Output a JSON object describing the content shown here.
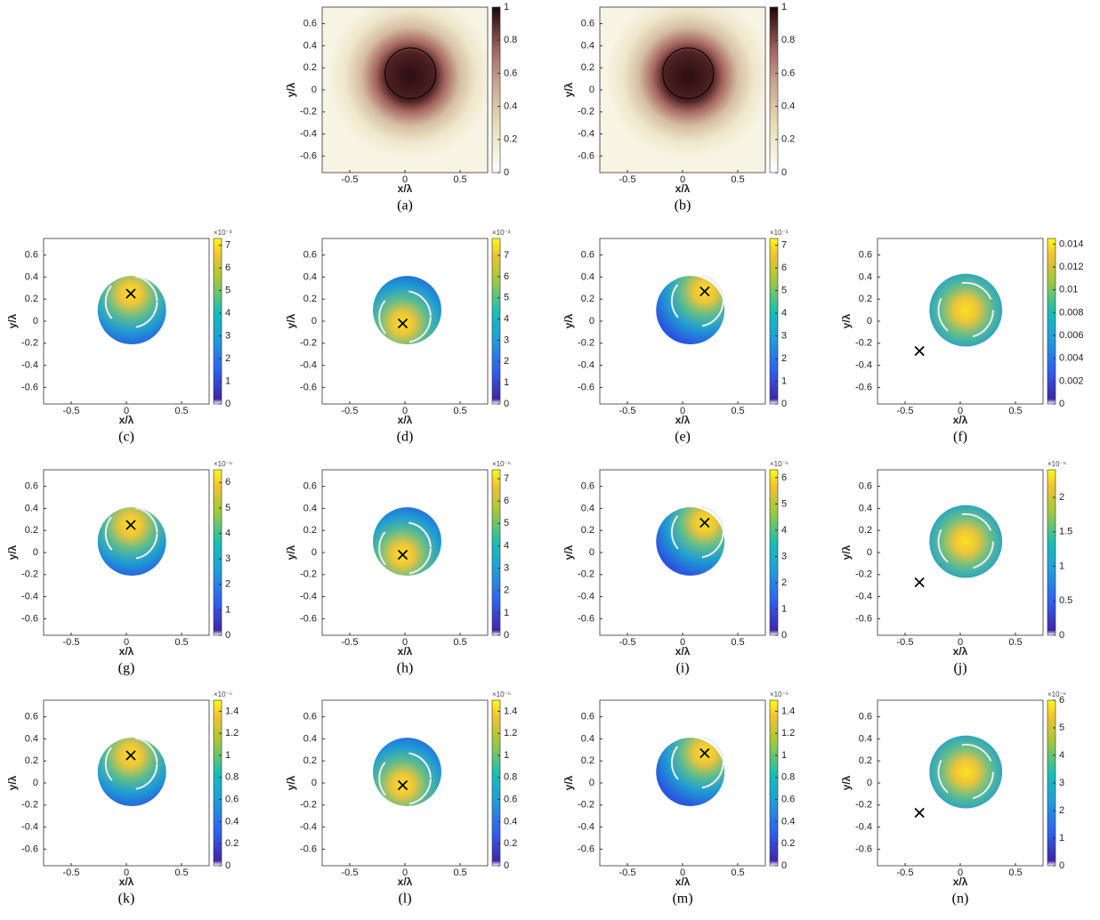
{
  "chart_data": [
    {
      "type": "heatmap",
      "label": "(a)",
      "xlabel": "x/λ",
      "ylabel": "y/λ",
      "xlim": [
        -0.75,
        0.75
      ],
      "ylim": [
        -0.75,
        0.75
      ],
      "xticks": [
        -0.5,
        0,
        0.5
      ],
      "yticks": [
        -0.6,
        -0.4,
        -0.2,
        0,
        0.2,
        0.4,
        0.6
      ],
      "clim": [
        0,
        1
      ],
      "cticks": [
        0,
        0.2,
        0.4,
        0.6,
        0.8,
        1
      ],
      "colormap": "pink"
    },
    {
      "type": "heatmap",
      "label": "(b)",
      "xlabel": "x/λ",
      "ylabel": "y/λ",
      "xlim": [
        -0.75,
        0.75
      ],
      "ylim": [
        -0.75,
        0.75
      ],
      "xticks": [
        -0.5,
        0,
        0.5
      ],
      "yticks": [
        -0.6,
        -0.4,
        -0.2,
        0,
        0.2,
        0.4,
        0.6
      ],
      "clim": [
        0,
        1
      ],
      "cticks": [
        0,
        0.2,
        0.4,
        0.6,
        0.8,
        1
      ],
      "colormap": "pink"
    },
    {
      "type": "heatmap",
      "label": "(c)",
      "xlabel": "x/λ",
      "ylabel": "y/λ",
      "xlim": [
        -0.75,
        0.75
      ],
      "ylim": [
        -0.75,
        0.75
      ],
      "xticks": [
        -0.5,
        0,
        0.5
      ],
      "yticks": [
        -0.6,
        -0.4,
        -0.2,
        0,
        0.2,
        0.4,
        0.6
      ],
      "clim": [
        0,
        7.3
      ],
      "cticks": [
        0,
        1,
        2,
        3,
        4,
        5,
        6,
        7
      ],
      "colorbar_exponent": "×10⁻³",
      "marker": {
        "x": 0.04,
        "y": 0.25
      },
      "colormap": "parula"
    },
    {
      "type": "heatmap",
      "label": "(d)",
      "xlabel": "x/λ",
      "ylabel": "y/λ",
      "xlim": [
        -0.75,
        0.75
      ],
      "ylim": [
        -0.75,
        0.75
      ],
      "xticks": [
        -0.5,
        0,
        0.5
      ],
      "yticks": [
        -0.6,
        -0.4,
        -0.2,
        0,
        0.2,
        0.4,
        0.6
      ],
      "clim": [
        0,
        7.8
      ],
      "cticks": [
        0,
        1,
        2,
        3,
        4,
        5,
        6,
        7
      ],
      "colorbar_exponent": "×10⁻³",
      "marker": {
        "x": -0.02,
        "y": -0.02
      },
      "colormap": "parula"
    },
    {
      "type": "heatmap",
      "label": "(e)",
      "xlabel": "x/λ",
      "ylabel": "y/λ",
      "xlim": [
        -0.75,
        0.75
      ],
      "ylim": [
        -0.75,
        0.75
      ],
      "xticks": [
        -0.5,
        0,
        0.5
      ],
      "yticks": [
        -0.6,
        -0.4,
        -0.2,
        0,
        0.2,
        0.4,
        0.6
      ],
      "clim": [
        0,
        7.3
      ],
      "cticks": [
        0,
        1,
        2,
        3,
        4,
        5,
        6,
        7
      ],
      "colorbar_exponent": "×10⁻³",
      "marker": {
        "x": 0.2,
        "y": 0.27
      },
      "colormap": "parula"
    },
    {
      "type": "heatmap",
      "label": "(f)",
      "xlabel": "x/λ",
      "ylabel": "y/λ",
      "xlim": [
        -0.75,
        0.75
      ],
      "ylim": [
        -0.75,
        0.75
      ],
      "xticks": [
        -0.5,
        0,
        0.5
      ],
      "yticks": [
        -0.6,
        -0.4,
        -0.2,
        0,
        0.2,
        0.4,
        0.6
      ],
      "clim": [
        0,
        0.0145
      ],
      "cticks": [
        0,
        0.002,
        0.004,
        0.006,
        0.008,
        0.01,
        0.012,
        0.014
      ],
      "marker": {
        "x": -0.37,
        "y": -0.27
      },
      "colormap": "parula"
    },
    {
      "type": "heatmap",
      "label": "(g)",
      "xlabel": "x/λ",
      "ylabel": "y/λ",
      "xlim": [
        -0.75,
        0.75
      ],
      "ylim": [
        -0.75,
        0.75
      ],
      "xticks": [
        -0.5,
        0,
        0.5
      ],
      "yticks": [
        -0.6,
        -0.4,
        -0.2,
        0,
        0.2,
        0.4,
        0.6
      ],
      "clim": [
        0,
        6.5
      ],
      "cticks": [
        0,
        1,
        2,
        3,
        4,
        5,
        6
      ],
      "colorbar_exponent": "×10⁻⁶",
      "marker": {
        "x": 0.04,
        "y": 0.25
      },
      "colormap": "parula"
    },
    {
      "type": "heatmap",
      "label": "(h)",
      "xlabel": "x/λ",
      "ylabel": "y/λ",
      "xlim": [
        -0.75,
        0.75
      ],
      "ylim": [
        -0.75,
        0.75
      ],
      "xticks": [
        -0.5,
        0,
        0.5
      ],
      "yticks": [
        -0.6,
        -0.4,
        -0.2,
        0,
        0.2,
        0.4,
        0.6
      ],
      "clim": [
        0,
        7.4
      ],
      "cticks": [
        0,
        1,
        2,
        3,
        4,
        5,
        6,
        7
      ],
      "colorbar_exponent": "×10⁻⁶",
      "marker": {
        "x": -0.02,
        "y": -0.02
      },
      "colormap": "parula"
    },
    {
      "type": "heatmap",
      "label": "(i)",
      "xlabel": "x/λ",
      "ylabel": "y/λ",
      "xlim": [
        -0.75,
        0.75
      ],
      "ylim": [
        -0.75,
        0.75
      ],
      "xticks": [
        -0.5,
        0,
        0.5
      ],
      "yticks": [
        -0.6,
        -0.4,
        -0.2,
        0,
        0.2,
        0.4,
        0.6
      ],
      "clim": [
        0,
        6.3
      ],
      "cticks": [
        0,
        1,
        2,
        3,
        4,
        5,
        6
      ],
      "colorbar_exponent": "×10⁻⁶",
      "marker": {
        "x": 0.2,
        "y": 0.27
      },
      "colormap": "parula"
    },
    {
      "type": "heatmap",
      "label": "(j)",
      "xlabel": "x/λ",
      "ylabel": "y/λ",
      "xlim": [
        -0.75,
        0.75
      ],
      "ylim": [
        -0.75,
        0.75
      ],
      "xticks": [
        -0.5,
        0,
        0.5
      ],
      "yticks": [
        -0.6,
        -0.4,
        -0.2,
        0,
        0.2,
        0.4,
        0.6
      ],
      "clim": [
        0,
        2.4
      ],
      "cticks": [
        0,
        0.5,
        1,
        1.5,
        2
      ],
      "colorbar_exponent": "×10⁻⁶",
      "marker": {
        "x": -0.37,
        "y": -0.27
      },
      "colormap": "parula"
    },
    {
      "type": "heatmap",
      "label": "(k)",
      "xlabel": "x/λ",
      "ylabel": "y/λ",
      "xlim": [
        -0.75,
        0.75
      ],
      "ylim": [
        -0.75,
        0.75
      ],
      "xticks": [
        -0.5,
        0,
        0.5
      ],
      "yticks": [
        -0.6,
        -0.4,
        -0.2,
        0,
        0.2,
        0.4,
        0.6
      ],
      "clim": [
        0,
        1.5
      ],
      "cticks": [
        0,
        0.2,
        0.4,
        0.6,
        0.8,
        1,
        1.2,
        1.4
      ],
      "colorbar_exponent": "×10⁻⁵",
      "marker": {
        "x": 0.04,
        "y": 0.25
      },
      "colormap": "parula"
    },
    {
      "type": "heatmap",
      "label": "(l)",
      "xlabel": "x/λ",
      "ylabel": "y/λ",
      "xlim": [
        -0.75,
        0.75
      ],
      "ylim": [
        -0.75,
        0.75
      ],
      "xticks": [
        -0.5,
        0,
        0.5
      ],
      "yticks": [
        -0.6,
        -0.4,
        -0.2,
        0,
        0.2,
        0.4,
        0.6
      ],
      "clim": [
        0,
        1.5
      ],
      "cticks": [
        0,
        0.2,
        0.4,
        0.6,
        0.8,
        1,
        1.2,
        1.4
      ],
      "colorbar_exponent": "×10⁻⁵",
      "marker": {
        "x": -0.02,
        "y": -0.02
      },
      "colormap": "parula"
    },
    {
      "type": "heatmap",
      "label": "(m)",
      "xlabel": "x/λ",
      "ylabel": "y/λ",
      "xlim": [
        -0.75,
        0.75
      ],
      "ylim": [
        -0.75,
        0.75
      ],
      "xticks": [
        -0.5,
        0,
        0.5
      ],
      "yticks": [
        -0.6,
        -0.4,
        -0.2,
        0,
        0.2,
        0.4,
        0.6
      ],
      "clim": [
        0,
        1.5
      ],
      "cticks": [
        0,
        0.2,
        0.4,
        0.6,
        0.8,
        1,
        1.2,
        1.4
      ],
      "colorbar_exponent": "×10⁻⁵",
      "marker": {
        "x": 0.2,
        "y": 0.27
      },
      "colormap": "parula"
    },
    {
      "type": "heatmap",
      "label": "(n)",
      "xlabel": "x/λ",
      "ylabel": "y/λ",
      "xlim": [
        -0.75,
        0.75
      ],
      "ylim": [
        -0.75,
        0.75
      ],
      "xticks": [
        -0.5,
        0,
        0.5
      ],
      "yticks": [
        -0.6,
        -0.4,
        -0.2,
        0,
        0.2,
        0.4,
        0.6
      ],
      "clim": [
        0,
        6
      ],
      "cticks": [
        0,
        1,
        2,
        3,
        4,
        5,
        6
      ],
      "colorbar_exponent": "×10⁻⁶",
      "marker": {
        "x": -0.37,
        "y": -0.27
      },
      "colormap": "parula"
    }
  ]
}
